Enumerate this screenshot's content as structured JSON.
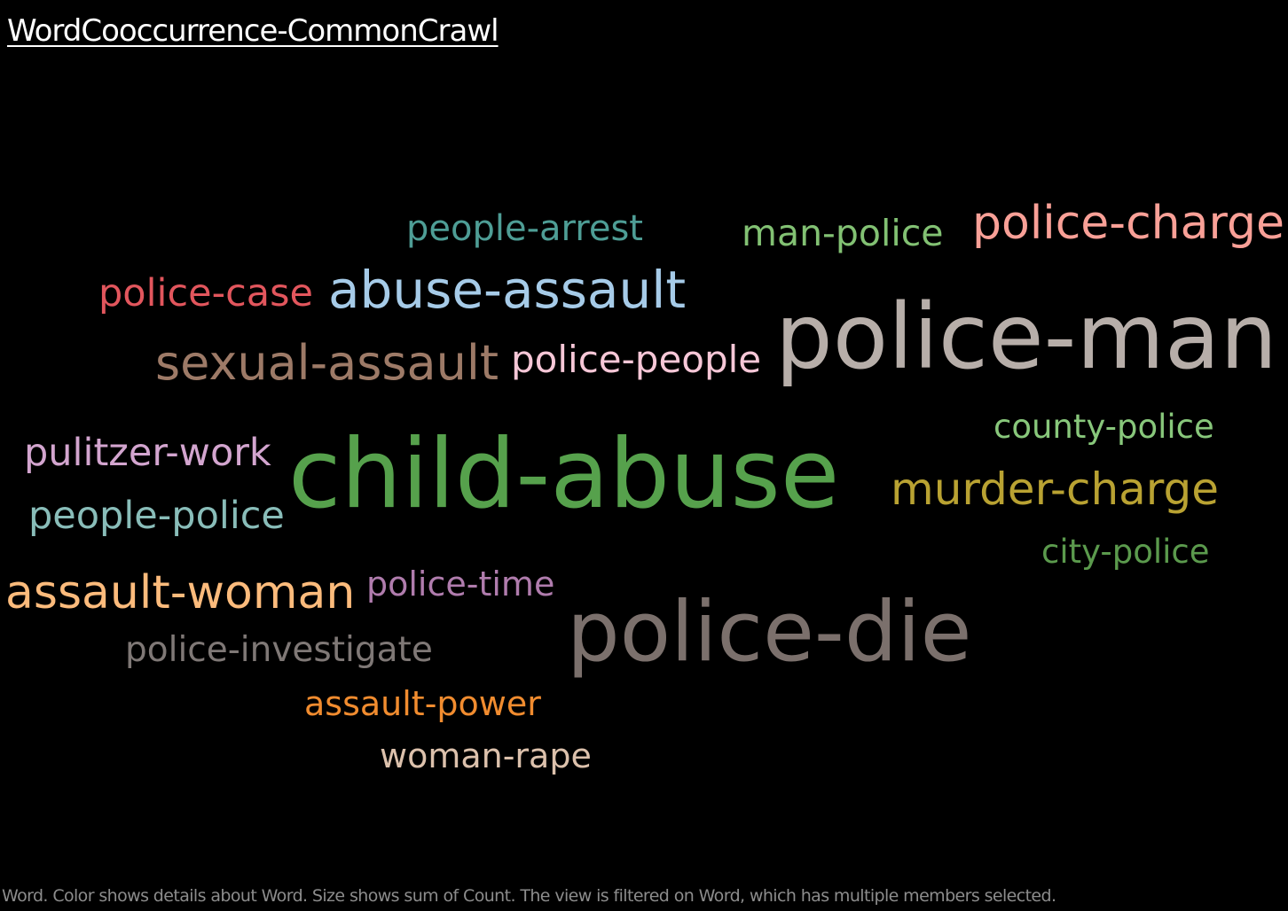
{
  "sheet": {
    "title": "WordCooccurrence-CommonCrawl",
    "caption": "Word.  Color shows details about Word.  Size shows sum of Count. The view is filtered on Word, which has multiple members selected."
  },
  "chart_data": {
    "type": "word-cloud",
    "title": "WordCooccurrence-CommonCrawl",
    "encoding": {
      "color": "Word",
      "size": "sum of Count"
    },
    "words": [
      {
        "word": "people-arrest",
        "color": "#4e9d95",
        "relative_size": 3
      },
      {
        "word": "man-police",
        "color": "#82c173",
        "relative_size": 3
      },
      {
        "word": "police-charge",
        "color": "#f9a097",
        "relative_size": 4
      },
      {
        "word": "police-case",
        "color": "#e2565d",
        "relative_size": 3
      },
      {
        "word": "abuse-assault",
        "color": "#a6cbe8",
        "relative_size": 4
      },
      {
        "word": "police-man",
        "color": "#b7aea9",
        "relative_size": 8
      },
      {
        "word": "sexual-assault",
        "color": "#9d7a67",
        "relative_size": 4
      },
      {
        "word": "police-people",
        "color": "#f6c7d7",
        "relative_size": 3
      },
      {
        "word": "county-police",
        "color": "#88c77b",
        "relative_size": 3
      },
      {
        "word": "pulitzer-work",
        "color": "#d3a5cf",
        "relative_size": 3
      },
      {
        "word": "child-abuse",
        "color": "#56a14c",
        "relative_size": 9
      },
      {
        "word": "murder-charge",
        "color": "#b9a232",
        "relative_size": 4
      },
      {
        "word": "people-police",
        "color": "#89bdb9",
        "relative_size": 3
      },
      {
        "word": "city-police",
        "color": "#5b9a4d",
        "relative_size": 3
      },
      {
        "word": "assault-woman",
        "color": "#fcbb7c",
        "relative_size": 4
      },
      {
        "word": "police-time",
        "color": "#b07cad",
        "relative_size": 3
      },
      {
        "word": "police-die",
        "color": "#7b706c",
        "relative_size": 8
      },
      {
        "word": "police-investigate",
        "color": "#7f7876",
        "relative_size": 3
      },
      {
        "word": "assault-power",
        "color": "#f18c2f",
        "relative_size": 3
      },
      {
        "word": "woman-rape",
        "color": "#dcc1ac",
        "relative_size": 3
      }
    ]
  }
}
